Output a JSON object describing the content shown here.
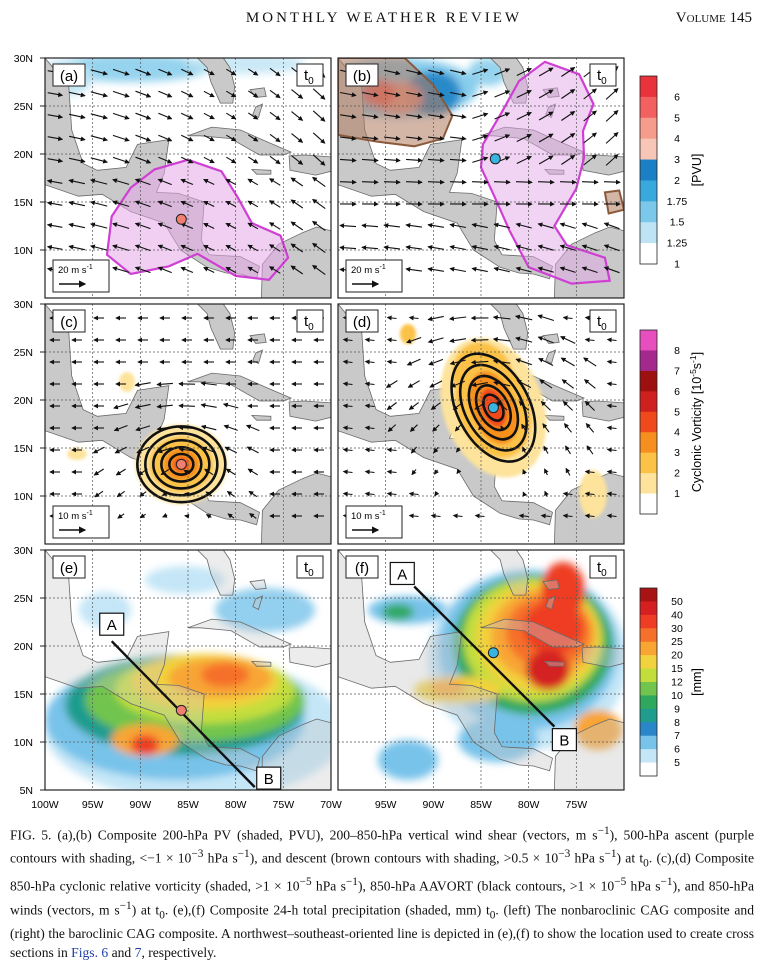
{
  "header": {
    "journal": "MONTHLY WEATHER REVIEW",
    "volume": "Volume 145"
  },
  "figure": {
    "y_ticks": [
      "30N",
      "25N",
      "20N",
      "15N",
      "10N",
      "5N"
    ],
    "x_ticks": [
      "100W",
      "95W",
      "90W",
      "85W",
      "80W",
      "75W",
      "70W",
      "95W",
      "90W",
      "85W",
      "80W",
      "75W"
    ],
    "time_label": "t",
    "time_sub": "0",
    "panels": [
      {
        "id": "a",
        "label": "(a)",
        "vector_scale": "20 m s",
        "marker_color": "#f07f6f"
      },
      {
        "id": "b",
        "label": "(b)",
        "vector_scale": "20 m s",
        "marker_color": "#39b3e0"
      },
      {
        "id": "c",
        "label": "(c)",
        "vector_scale": "10 m s",
        "marker_color": "#f07f6f"
      },
      {
        "id": "d",
        "label": "(d)",
        "vector_scale": "10 m s",
        "marker_color": "#39b3e0"
      },
      {
        "id": "e",
        "label": "(e)",
        "marker_color": "#f07f6f",
        "line_end_a": "A",
        "line_end_b": "B"
      },
      {
        "id": "f",
        "label": "(f)",
        "marker_color": "#39b3e0",
        "line_end_a": "A",
        "line_end_b": "B"
      }
    ],
    "colorbars": [
      {
        "title": "[PVU]",
        "ticks": [
          "6",
          "5",
          "4",
          "3",
          "2",
          "1.75",
          "1.5",
          "1.25",
          "1"
        ],
        "colors": [
          "#e8333a",
          "#f26060",
          "#f59c8c",
          "#f7c6b6",
          "#1a7fc4",
          "#38a9dc",
          "#7cc8ea",
          "#bde3f4",
          "#ffffff"
        ]
      },
      {
        "title": "Cyclonic Vorticity [10",
        "title_exp": "-5",
        "title_unit": "s",
        "title_unit_exp": "-1",
        "title_close": "]",
        "ticks": [
          "8",
          "7",
          "6",
          "5",
          "4",
          "3",
          "2",
          "1"
        ],
        "colors": [
          "#e64fbd",
          "#a32a8c",
          "#9c1010",
          "#cf2020",
          "#f04a1c",
          "#f68f1f",
          "#fbc247",
          "#fde39b",
          "#ffffff"
        ]
      },
      {
        "title": "[mm]",
        "ticks": [
          "50",
          "40",
          "30",
          "25",
          "20",
          "15",
          "12",
          "10",
          "9",
          "8",
          "7",
          "6",
          "5"
        ],
        "colors": [
          "#a81414",
          "#d42020",
          "#ee3d24",
          "#f5702a",
          "#f8a534",
          "#f2d23e",
          "#c3de3c",
          "#71c44e",
          "#2fa85e",
          "#1f9c8e",
          "#2a86c8",
          "#78c3ea",
          "#c4e6f7",
          "#ffffff"
        ]
      }
    ]
  },
  "caption": {
    "lead": "FIG. 5. (a),(b) Composite 200-hPa PV (shaded, PVU), 200–850-hPa vertical wind shear (vectors, m s",
    "p1": "), 500-hPa ascent (purple contours with shading, <−1 × 10",
    "p2": " hPa s",
    "p3": "), and descent (brown contours with shading, >0.5 × 10",
    "p4": " hPa s",
    "p5": ") at t",
    "p6": ". (c),(d) Composite 850-hPa cyclonic relative vorticity (shaded, >1 × 10",
    "p7": " hPa s",
    "p8": "), 850-hPa AAVORT (black contours, >1 × 10",
    "p9": " hPa s",
    "p10": "), and 850-hPa winds (vectors, m s",
    "p11": ") at t",
    "p12": ". (e),(f) Composite 24-h total precipitation (shaded, mm) t",
    "p13": ". (left) The nonbaroclinic CAG composite and (right) the baroclinic CAG composite. A northwest–southeast-oriented line is depicted in (e),(f) to show the location used to create cross sections in ",
    "link": "Figs. 6",
    "p14": " and ",
    "link2": "7",
    "p15": ", respectively.",
    "exp_neg1": "−1",
    "exp_neg3": "−3",
    "exp_neg5": "−5",
    "sub0": "0"
  }
}
